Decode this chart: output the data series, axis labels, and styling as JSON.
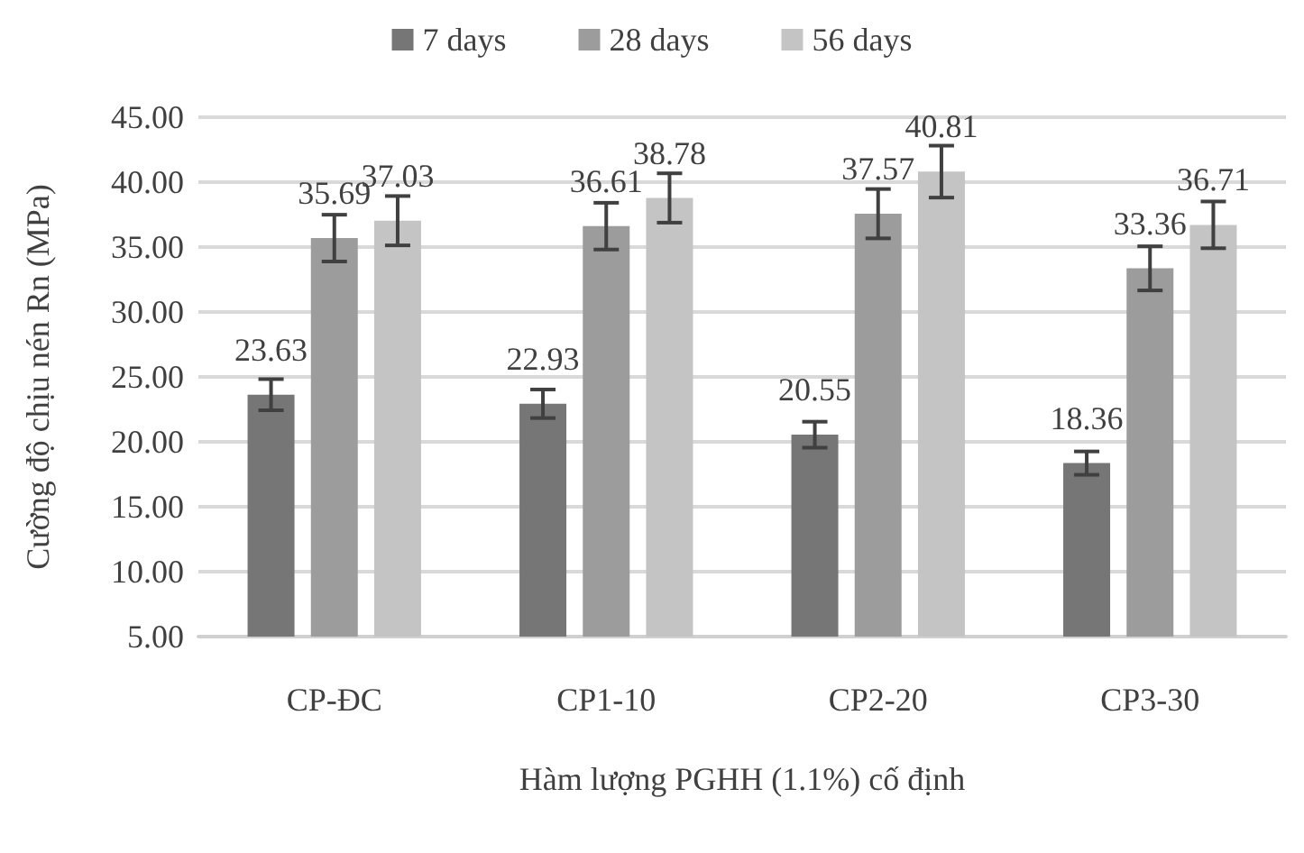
{
  "chart_data": {
    "type": "bar",
    "xlabel": "Hàm lượng PGHH (1.1%) cố định",
    "ylabel": "Cường độ chịu nén Rn (MPa)",
    "categories": [
      "CP-ĐC",
      "CP1-10",
      "CP2-20",
      "CP3-30"
    ],
    "series": [
      {
        "name": "7 days",
        "color": "#767676",
        "values": [
          23.63,
          22.93,
          20.55,
          18.36
        ],
        "errors": [
          1.2,
          1.1,
          1.0,
          0.9
        ]
      },
      {
        "name": "28 days",
        "color": "#9c9c9c",
        "values": [
          35.69,
          36.61,
          37.57,
          33.36
        ],
        "errors": [
          1.8,
          1.8,
          1.9,
          1.7
        ]
      },
      {
        "name": "56 days",
        "color": "#c4c4c4",
        "values": [
          37.03,
          38.78,
          40.81,
          36.71
        ],
        "errors": [
          1.9,
          1.9,
          2.0,
          1.8
        ]
      }
    ],
    "ylim": [
      5,
      45
    ],
    "yticks": [
      {
        "value": 5,
        "label": "5.00"
      },
      {
        "value": 10,
        "label": "10.00"
      },
      {
        "value": 15,
        "label": "15.00"
      },
      {
        "value": 20,
        "label": "20.00"
      },
      {
        "value": 25,
        "label": "25.00"
      },
      {
        "value": 30,
        "label": "30.00"
      },
      {
        "value": 35,
        "label": "35.00"
      },
      {
        "value": 40,
        "label": "40.00"
      },
      {
        "value": 45,
        "label": "45.00"
      }
    ],
    "grid": "y",
    "legend": "top",
    "data_labels": true
  }
}
